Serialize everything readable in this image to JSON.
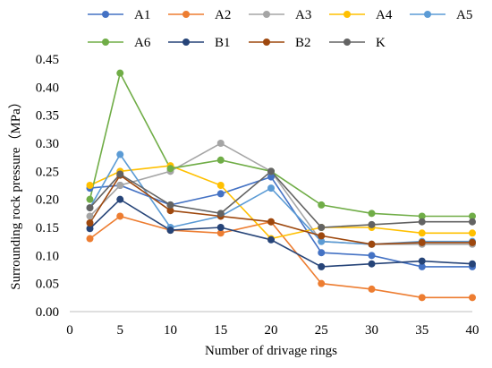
{
  "chart_data": {
    "type": "line",
    "title": "",
    "xlabel": "Number of drivage rings",
    "ylabel": "Surrounding rock pressure（MPa）",
    "xlim": [
      0,
      40
    ],
    "ylim": [
      0.0,
      0.45
    ],
    "x_ticks": [
      0,
      5,
      10,
      15,
      20,
      25,
      30,
      35,
      40
    ],
    "y_ticks": [
      0.0,
      0.05,
      0.1,
      0.15,
      0.2,
      0.25,
      0.3,
      0.35,
      0.4,
      0.45
    ],
    "y_tick_labels": [
      "0.00",
      "0.05",
      "0.10",
      "0.15",
      "0.20",
      "0.25",
      "0.30",
      "0.35",
      "0.40",
      "0.45"
    ],
    "x_tick_labels": [
      "0",
      "5",
      "10",
      "15",
      "20",
      "25",
      "30",
      "35",
      "40"
    ],
    "grid": false,
    "legend_position": "top",
    "x": [
      2,
      5,
      10,
      15,
      20,
      25,
      30,
      35,
      40
    ],
    "series": [
      {
        "name": "A1",
        "color": "#4472C4",
        "values": [
          0.22,
          0.225,
          0.19,
          0.21,
          0.24,
          0.105,
          0.1,
          0.08,
          0.08
        ]
      },
      {
        "name": "A2",
        "color": "#ED7D31",
        "values": [
          0.13,
          0.17,
          0.145,
          0.14,
          0.16,
          0.05,
          0.04,
          0.025,
          0.025
        ]
      },
      {
        "name": "A3",
        "color": "#A5A5A5",
        "values": [
          0.17,
          0.225,
          0.25,
          0.3,
          0.25,
          0.125,
          0.12,
          0.12,
          0.12
        ]
      },
      {
        "name": "A4",
        "color": "#FFC000",
        "values": [
          0.225,
          0.25,
          0.26,
          0.225,
          0.13,
          0.15,
          0.15,
          0.14,
          0.14
        ]
      },
      {
        "name": "A5",
        "color": "#5B9BD5",
        "values": [
          0.185,
          0.28,
          0.15,
          0.17,
          0.22,
          0.125,
          0.12,
          0.125,
          0.125
        ]
      },
      {
        "name": "A6",
        "color": "#70AD47",
        "values": [
          0.2,
          0.425,
          0.255,
          0.27,
          0.25,
          0.19,
          0.175,
          0.17,
          0.17
        ]
      },
      {
        "name": "B1",
        "color": "#264478",
        "values": [
          0.148,
          0.2,
          0.145,
          0.15,
          0.128,
          0.08,
          0.085,
          0.09,
          0.085
        ]
      },
      {
        "name": "B2",
        "color": "#9E480E",
        "values": [
          0.158,
          0.243,
          0.18,
          0.17,
          0.16,
          0.135,
          0.12,
          0.123,
          0.123
        ]
      },
      {
        "name": "K",
        "color": "#636363",
        "values": [
          0.185,
          0.245,
          0.19,
          0.175,
          0.25,
          0.15,
          0.155,
          0.16,
          0.16
        ]
      }
    ]
  }
}
